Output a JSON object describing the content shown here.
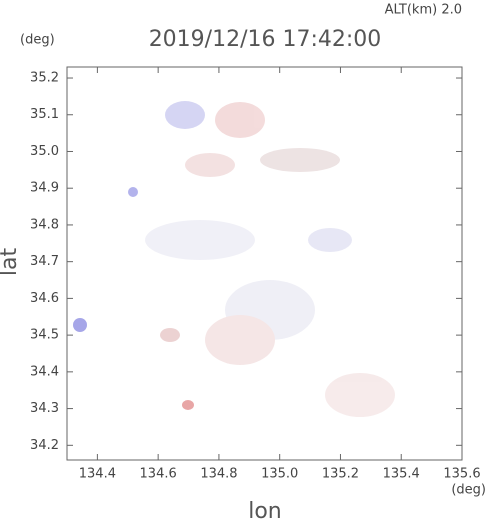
{
  "chart_data": {
    "type": "map",
    "title": "2019/12/16 17:42:00",
    "annotation": "ALT(km)  2.0",
    "y_unit": "(deg)",
    "x_unit": "(deg)",
    "xlabel": "lon",
    "ylabel": "lat",
    "xlim": [
      134.3,
      135.6
    ],
    "ylim": [
      34.16,
      35.23
    ],
    "xticks": [
      134.4,
      134.6,
      134.8,
      {
        "value": 135,
        "label": "135.0"
      },
      135.2,
      135.4,
      135.6
    ],
    "yticks": [
      34.2,
      34.3,
      34.4,
      34.5,
      34.6,
      34.7,
      34.8,
      34.9,
      {
        "value": 35,
        "label": "35.0"
      },
      35.1,
      35.2
    ]
  }
}
